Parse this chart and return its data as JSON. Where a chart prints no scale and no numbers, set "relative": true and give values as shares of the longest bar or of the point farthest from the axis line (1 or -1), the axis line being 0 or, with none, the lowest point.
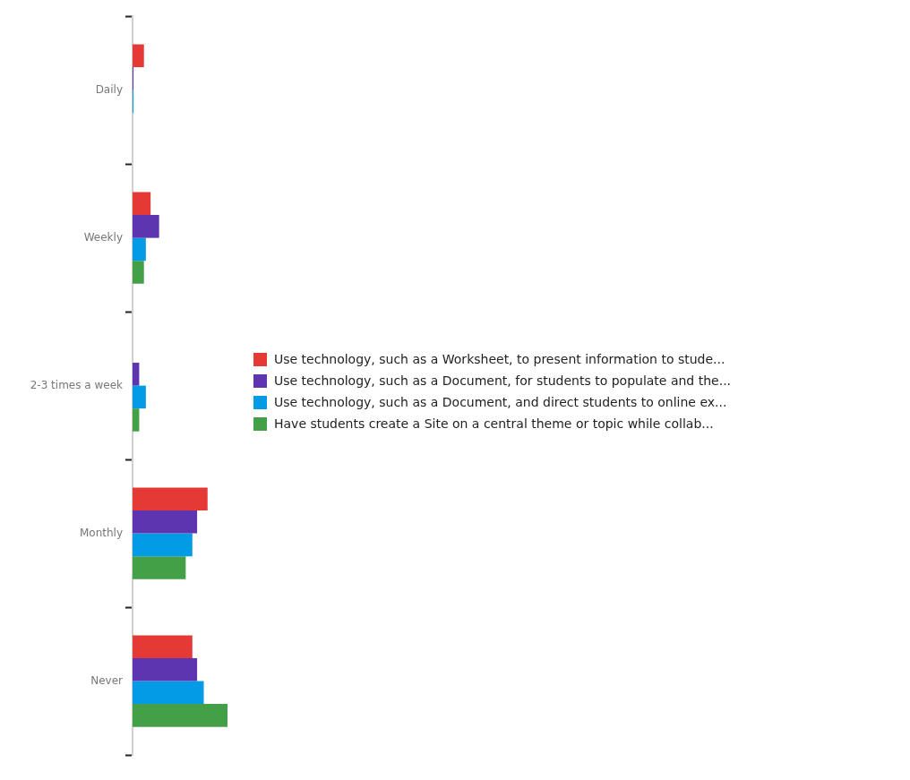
{
  "chart_data": {
    "type": "bar",
    "orientation": "horizontal",
    "relative": true,
    "categories": [
      "Daily",
      "Weekly",
      "2-3 times a week",
      "Monthly",
      "Never"
    ],
    "series": [
      {
        "name": "Use technology, such as a Worksheet, to present information to stude...",
        "color": "#e53935",
        "values": [
          0.12,
          0.19,
          0,
          0.79,
          0.63
        ]
      },
      {
        "name": "Use technology, such as a Document, for students to populate and the...",
        "color": "#5e35b1",
        "values": [
          0.01,
          0.28,
          0.07,
          0.68,
          0.68
        ]
      },
      {
        "name": "Use technology, such as a Document, and direct students to online ex...",
        "color": "#039be5",
        "values": [
          0.01,
          0.14,
          0.14,
          0.63,
          0.75
        ]
      },
      {
        "name": "Have students create a Site on a central theme or topic while collab...",
        "color": "#43a047",
        "values": [
          0,
          0.12,
          0.07,
          0.56,
          1
        ]
      }
    ],
    "legend": "right",
    "tick_labels": "y",
    "grid": false
  }
}
